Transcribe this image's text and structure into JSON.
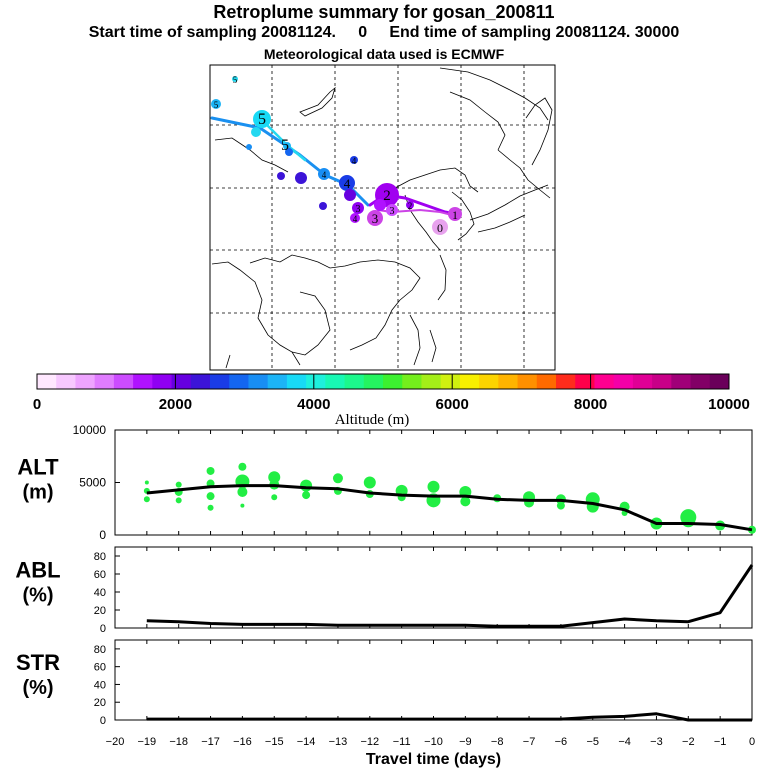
{
  "header": {
    "title": "Retroplume summary for gosan_200811",
    "sampling_line": "Start time of sampling 20081124.     0     End time of sampling 20081124. 30000",
    "met_line": "Meteorological data used is ECMWF"
  },
  "colorbar": {
    "label": "Altitude  (m)",
    "tick_labels": [
      "0",
      "2000",
      "4000",
      "6000",
      "8000",
      "10000"
    ],
    "colors": [
      "#ffe8ff",
      "#f7c8ff",
      "#eea4ff",
      "#e07cff",
      "#cc4cff",
      "#b012ff",
      "#9000f2",
      "#6600e0",
      "#3c14d8",
      "#1a3ce6",
      "#1466f0",
      "#188ef4",
      "#1cb4f6",
      "#18daf6",
      "#1ef0dc",
      "#18f8b4",
      "#1cf88c",
      "#24f460",
      "#3cf030",
      "#74ee1c",
      "#a4ee18",
      "#d0f010",
      "#f8f000",
      "#fcd400",
      "#ffb400",
      "#ff9000",
      "#ff6a00",
      "#ff2c1c",
      "#ff004a",
      "#ff0090",
      "#f400a8",
      "#e00096",
      "#c80088",
      "#a00078",
      "#820066",
      "#6a005a"
    ]
  },
  "map": {
    "trajectory_labels": [
      {
        "text": "0",
        "color": "#e8a2ee"
      },
      {
        "text": "1",
        "color": "#cc44e6"
      },
      {
        "text": "2",
        "color": "#a000f0"
      },
      {
        "text": "3",
        "color": "#c070e8"
      },
      {
        "text": "4",
        "color": "#1a3ce6"
      },
      {
        "text": "5",
        "color": "#24d8f0"
      }
    ]
  },
  "chart_data": [
    {
      "type": "scatter+line",
      "panel": "ALT",
      "ylabel": "ALT\n(m)",
      "ylim": [
        0,
        10000
      ],
      "yticks": [
        0,
        5000,
        10000
      ],
      "x_mean": [
        -19,
        -18,
        -17,
        -16,
        -15,
        -14,
        -13,
        -12,
        -11,
        -10,
        -9,
        -8,
        -7,
        -6,
        -5,
        -4,
        -3,
        -2,
        -1,
        0
      ],
      "y_mean": [
        4000,
        4300,
        4600,
        4700,
        4700,
        4500,
        4400,
        4000,
        3800,
        3700,
        3700,
        3400,
        3300,
        3300,
        3000,
        2400,
        1100,
        1100,
        1000,
        500
      ],
      "scatter_x": [
        -19,
        -19,
        -19,
        -18,
        -18,
        -18,
        -17,
        -17,
        -17,
        -17,
        -16,
        -16,
        -16,
        -16,
        -15,
        -15,
        -15,
        -14,
        -14,
        -13,
        -13,
        -12,
        -12,
        -11,
        -11,
        -10,
        -10,
        -9,
        -9,
        -8,
        -7,
        -7,
        -6,
        -6,
        -5,
        -5,
        -4,
        -4,
        -3,
        -2,
        -2,
        -1,
        0
      ],
      "scatter_y": [
        3400,
        4200,
        5000,
        3300,
        4100,
        4800,
        2600,
        3700,
        4900,
        6100,
        2800,
        4100,
        5100,
        6500,
        3600,
        4800,
        5500,
        3800,
        4700,
        4200,
        5400,
        3900,
        5000,
        3600,
        4200,
        3300,
        4600,
        3200,
        4100,
        3500,
        3100,
        3600,
        2800,
        3400,
        2700,
        3400,
        2100,
        2700,
        1100,
        1400,
        1700,
        900,
        500
      ],
      "scatter_size": [
        3,
        3,
        2,
        3,
        4,
        3,
        3,
        4,
        4,
        4,
        2,
        5,
        7,
        4,
        3,
        5,
        6,
        4,
        6,
        4,
        5,
        4,
        6,
        4,
        6,
        7,
        6,
        5,
        6,
        4,
        5,
        6,
        4,
        5,
        6,
        7,
        3,
        5,
        6,
        7,
        8,
        5,
        4
      ],
      "scatter_color": "#22ee44",
      "line_color": "#000000"
    },
    {
      "type": "line",
      "panel": "ABL",
      "ylabel": "ABL\n(%)",
      "ylim": [
        0,
        90
      ],
      "yticks": [
        0,
        20,
        40,
        60,
        80
      ],
      "x": [
        -19,
        -18,
        -17,
        -16,
        -15,
        -14,
        -13,
        -12,
        -11,
        -10,
        -9,
        -8,
        -7,
        -6,
        -5,
        -4,
        -3,
        -2,
        -1,
        0
      ],
      "values": [
        8,
        7,
        5,
        4,
        4,
        4,
        3,
        3,
        3,
        3,
        3,
        2,
        2,
        2,
        6,
        10,
        8,
        7,
        17,
        70
      ]
    },
    {
      "type": "line",
      "panel": "STR",
      "ylabel": "STR\n(%)",
      "ylim": [
        0,
        90
      ],
      "yticks": [
        0,
        20,
        40,
        60,
        80
      ],
      "x": [
        -19,
        -18,
        -17,
        -16,
        -15,
        -14,
        -13,
        -12,
        -11,
        -10,
        -9,
        -8,
        -7,
        -6,
        -5,
        -4,
        -3,
        -2,
        -1,
        0
      ],
      "values": [
        1,
        1,
        1,
        1,
        1,
        1,
        1,
        1,
        1,
        1,
        1,
        1,
        1,
        1,
        3,
        4,
        7,
        0,
        0,
        0
      ],
      "xlabel": "Travel time (days)",
      "xticks": [
        -20,
        -19,
        -18,
        -17,
        -16,
        -15,
        -14,
        -13,
        -12,
        -11,
        -10,
        -9,
        -8,
        -7,
        -6,
        -5,
        -4,
        -3,
        -2,
        -1,
        0
      ]
    }
  ]
}
